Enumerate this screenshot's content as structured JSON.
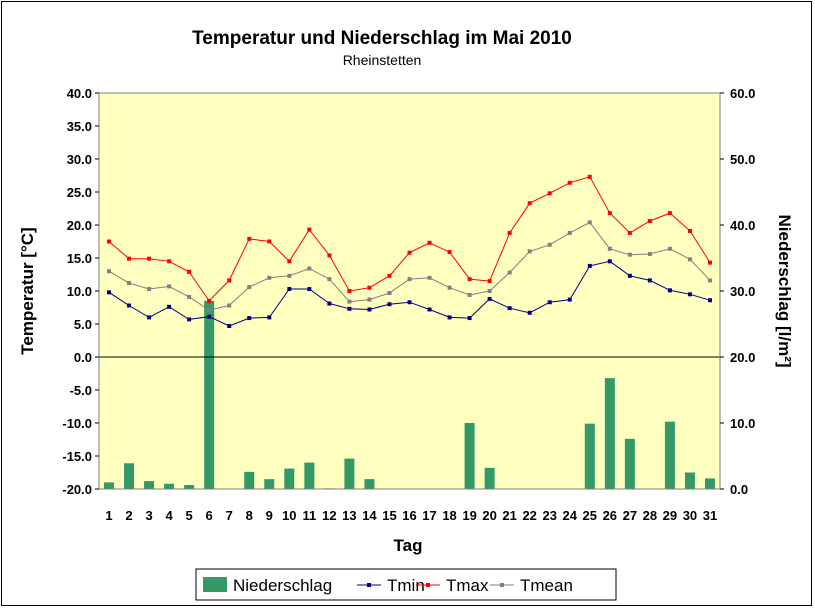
{
  "chart_data": {
    "type": "bar+line",
    "title": "Temperatur und Niederschlag im Mai 2010",
    "subtitle": "Rheinstetten",
    "xlabel": "Tag",
    "ylabel_left": "Temperatur [°C]",
    "ylabel_right": "Niederschlag [l/m²]",
    "ylim_left": [
      -20,
      40
    ],
    "ylim_right": [
      0,
      60
    ],
    "yticks_left": [
      "-20.0",
      "-15.0",
      "-10.0",
      "-5.0",
      "0.0",
      "5.0",
      "10.0",
      "15.0",
      "20.0",
      "25.0",
      "30.0",
      "35.0",
      "40.0"
    ],
    "yticks_right": [
      "0.0",
      "10.0",
      "20.0",
      "30.0",
      "40.0",
      "50.0",
      "60.0"
    ],
    "categories": [
      "1",
      "2",
      "3",
      "4",
      "5",
      "6",
      "7",
      "8",
      "9",
      "10",
      "11",
      "12",
      "13",
      "14",
      "15",
      "16",
      "17",
      "18",
      "19",
      "20",
      "21",
      "22",
      "23",
      "24",
      "25",
      "26",
      "27",
      "28",
      "29",
      "30",
      "31"
    ],
    "legend_position": "bottom",
    "grid": false,
    "plot_background": "#ffffc0",
    "series": [
      {
        "name": "Niederschlag",
        "kind": "bar",
        "axis": "right",
        "color": "#339966",
        "values": [
          1.0,
          3.9,
          1.2,
          0.8,
          0.6,
          28.5,
          0.0,
          2.6,
          1.5,
          3.1,
          4.0,
          0.1,
          4.6,
          1.5,
          0,
          0,
          0,
          0,
          10.0,
          3.2,
          0,
          0,
          0,
          0,
          9.9,
          16.8,
          7.6,
          0,
          10.2,
          2.5,
          1.6
        ]
      },
      {
        "name": "Tmin",
        "kind": "line",
        "axis": "left",
        "color": "#000080",
        "values": [
          9.8,
          7.8,
          6.0,
          7.6,
          5.7,
          6.1,
          4.7,
          5.9,
          6.0,
          10.3,
          10.3,
          8.1,
          7.3,
          7.2,
          8.0,
          8.3,
          7.2,
          6.0,
          5.9,
          8.8,
          7.4,
          6.7,
          8.3,
          8.7,
          13.8,
          14.5,
          12.3,
          11.6,
          10.1,
          9.5,
          8.6
        ]
      },
      {
        "name": "Tmax",
        "kind": "line",
        "axis": "left",
        "color": "#ff0000",
        "values": [
          17.5,
          14.9,
          14.9,
          14.5,
          12.9,
          8.5,
          11.6,
          17.9,
          17.5,
          14.5,
          19.3,
          15.4,
          10.0,
          10.5,
          12.3,
          15.8,
          17.3,
          15.9,
          11.8,
          11.5,
          18.8,
          23.3,
          24.8,
          26.4,
          27.3,
          21.8,
          18.8,
          20.6,
          21.8,
          19.1,
          14.3
        ]
      },
      {
        "name": "Tmean",
        "kind": "line",
        "axis": "left",
        "color": "#808080",
        "values": [
          13.0,
          11.2,
          10.3,
          10.7,
          9.1,
          7.1,
          7.8,
          10.6,
          12.0,
          12.3,
          13.4,
          11.8,
          8.4,
          8.7,
          9.7,
          11.8,
          12.0,
          10.5,
          9.4,
          10.0,
          12.8,
          16.0,
          17.0,
          18.8,
          20.4,
          16.4,
          15.5,
          15.6,
          16.4,
          14.8,
          11.6
        ]
      }
    ]
  }
}
